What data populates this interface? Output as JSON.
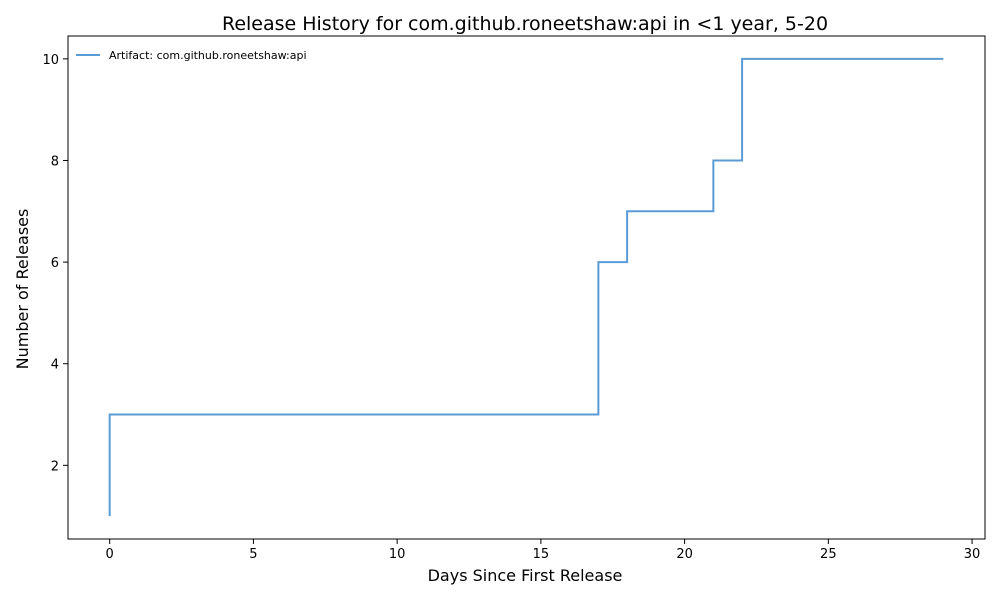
{
  "chart_data": {
    "type": "line",
    "drawstyle": "steps-post",
    "title": "Release History for com.github.roneetshaw:api in <1 year, 5-20",
    "xlabel": "Days Since First Release",
    "ylabel": "Number of Releases",
    "xlim": [
      -1.45,
      30.45
    ],
    "ylim": [
      0.55,
      10.45
    ],
    "xticks": [
      0,
      5,
      10,
      15,
      20,
      25,
      30
    ],
    "yticks": [
      2,
      4,
      6,
      8,
      10
    ],
    "grid": false,
    "legend_position": "top-left",
    "series": [
      {
        "name": "Artifact: com.github.roneetshaw:api",
        "color": "#5b9bd5",
        "x": [
          0,
          0,
          17,
          18,
          21,
          22,
          29
        ],
        "y": [
          1,
          3,
          6,
          7,
          8,
          10,
          10
        ]
      }
    ]
  }
}
